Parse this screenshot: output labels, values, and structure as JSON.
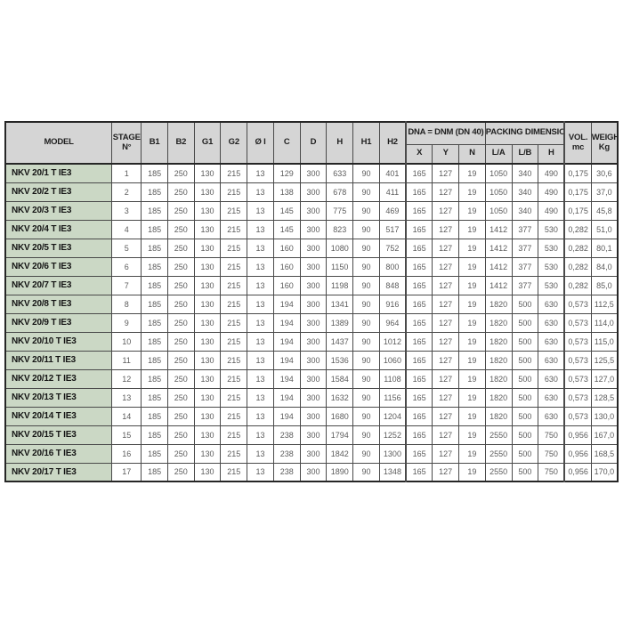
{
  "headers": {
    "model": "MODEL",
    "stage_top": "STAGE",
    "stage_bottom": "N°",
    "simple": [
      "B1",
      "B2",
      "G1",
      "G2",
      "Ø I",
      "C",
      "D",
      "H",
      "H1",
      "H2"
    ],
    "dna_group": "DNA = DNM (DN 40)",
    "dna_subs": [
      "X",
      "Y",
      "N"
    ],
    "packing_group": "PACKING DIMENSIONS",
    "packing_subs": [
      "L/A",
      "L/B",
      "H"
    ],
    "vol_top": "VOL.",
    "vol_bottom": "mc",
    "weight_top": "WEIGHT",
    "weight_bottom": "Kg"
  },
  "rows": [
    {
      "model": "NKV 20/1 T IE3",
      "values": [
        "1",
        "185",
        "250",
        "130",
        "215",
        "13",
        "129",
        "300",
        "633",
        "90",
        "401",
        "165",
        "127",
        "19",
        "1050",
        "340",
        "490",
        "0,175",
        "30,6"
      ]
    },
    {
      "model": "NKV 20/2 T IE3",
      "values": [
        "2",
        "185",
        "250",
        "130",
        "215",
        "13",
        "138",
        "300",
        "678",
        "90",
        "411",
        "165",
        "127",
        "19",
        "1050",
        "340",
        "490",
        "0,175",
        "37,0"
      ]
    },
    {
      "model": "NKV 20/3 T IE3",
      "values": [
        "3",
        "185",
        "250",
        "130",
        "215",
        "13",
        "145",
        "300",
        "775",
        "90",
        "469",
        "165",
        "127",
        "19",
        "1050",
        "340",
        "490",
        "0,175",
        "45,8"
      ]
    },
    {
      "model": "NKV 20/4 T IE3",
      "values": [
        "4",
        "185",
        "250",
        "130",
        "215",
        "13",
        "145",
        "300",
        "823",
        "90",
        "517",
        "165",
        "127",
        "19",
        "1412",
        "377",
        "530",
        "0,282",
        "51,0"
      ]
    },
    {
      "model": "NKV 20/5 T IE3",
      "values": [
        "5",
        "185",
        "250",
        "130",
        "215",
        "13",
        "160",
        "300",
        "1080",
        "90",
        "752",
        "165",
        "127",
        "19",
        "1412",
        "377",
        "530",
        "0,282",
        "80,1"
      ]
    },
    {
      "model": "NKV 20/6 T IE3",
      "values": [
        "6",
        "185",
        "250",
        "130",
        "215",
        "13",
        "160",
        "300",
        "1150",
        "90",
        "800",
        "165",
        "127",
        "19",
        "1412",
        "377",
        "530",
        "0,282",
        "84,0"
      ]
    },
    {
      "model": "NKV 20/7 T IE3",
      "values": [
        "7",
        "185",
        "250",
        "130",
        "215",
        "13",
        "160",
        "300",
        "1198",
        "90",
        "848",
        "165",
        "127",
        "19",
        "1412",
        "377",
        "530",
        "0,282",
        "85,0"
      ]
    },
    {
      "model": "NKV 20/8 T IE3",
      "values": [
        "8",
        "185",
        "250",
        "130",
        "215",
        "13",
        "194",
        "300",
        "1341",
        "90",
        "916",
        "165",
        "127",
        "19",
        "1820",
        "500",
        "630",
        "0,573",
        "112,5"
      ]
    },
    {
      "model": "NKV 20/9 T IE3",
      "values": [
        "9",
        "185",
        "250",
        "130",
        "215",
        "13",
        "194",
        "300",
        "1389",
        "90",
        "964",
        "165",
        "127",
        "19",
        "1820",
        "500",
        "630",
        "0,573",
        "114,0"
      ]
    },
    {
      "model": "NKV 20/10 T IE3",
      "values": [
        "10",
        "185",
        "250",
        "130",
        "215",
        "13",
        "194",
        "300",
        "1437",
        "90",
        "1012",
        "165",
        "127",
        "19",
        "1820",
        "500",
        "630",
        "0,573",
        "115,0"
      ]
    },
    {
      "model": "NKV 20/11 T IE3",
      "values": [
        "11",
        "185",
        "250",
        "130",
        "215",
        "13",
        "194",
        "300",
        "1536",
        "90",
        "1060",
        "165",
        "127",
        "19",
        "1820",
        "500",
        "630",
        "0,573",
        "125,5"
      ]
    },
    {
      "model": "NKV 20/12 T IE3",
      "values": [
        "12",
        "185",
        "250",
        "130",
        "215",
        "13",
        "194",
        "300",
        "1584",
        "90",
        "1108",
        "165",
        "127",
        "19",
        "1820",
        "500",
        "630",
        "0,573",
        "127,0"
      ]
    },
    {
      "model": "NKV 20/13 T IE3",
      "values": [
        "13",
        "185",
        "250",
        "130",
        "215",
        "13",
        "194",
        "300",
        "1632",
        "90",
        "1156",
        "165",
        "127",
        "19",
        "1820",
        "500",
        "630",
        "0,573",
        "128,5"
      ]
    },
    {
      "model": "NKV 20/14 T IE3",
      "values": [
        "14",
        "185",
        "250",
        "130",
        "215",
        "13",
        "194",
        "300",
        "1680",
        "90",
        "1204",
        "165",
        "127",
        "19",
        "1820",
        "500",
        "630",
        "0,573",
        "130,0"
      ]
    },
    {
      "model": "NKV 20/15 T IE3",
      "values": [
        "15",
        "185",
        "250",
        "130",
        "215",
        "13",
        "238",
        "300",
        "1794",
        "90",
        "1252",
        "165",
        "127",
        "19",
        "2550",
        "500",
        "750",
        "0,956",
        "167,0"
      ]
    },
    {
      "model": "NKV 20/16 T IE3",
      "values": [
        "16",
        "185",
        "250",
        "130",
        "215",
        "13",
        "238",
        "300",
        "1842",
        "90",
        "1300",
        "165",
        "127",
        "19",
        "2550",
        "500",
        "750",
        "0,956",
        "168,5"
      ]
    },
    {
      "model": "NKV 20/17 T IE3",
      "values": [
        "17",
        "185",
        "250",
        "130",
        "215",
        "13",
        "238",
        "300",
        "1890",
        "90",
        "1348",
        "165",
        "127",
        "19",
        "2550",
        "500",
        "750",
        "0,956",
        "170,0"
      ]
    }
  ],
  "colors": {
    "header_bg": "#d5d5d5",
    "model_bg": "#cbd8c5",
    "border": "#4a4a4a",
    "outer_border": "#262626",
    "header_text": "#1f1f1f",
    "data_text": "#5c5c5c",
    "model_text": "#141414",
    "page_bg": "#ffffff"
  }
}
